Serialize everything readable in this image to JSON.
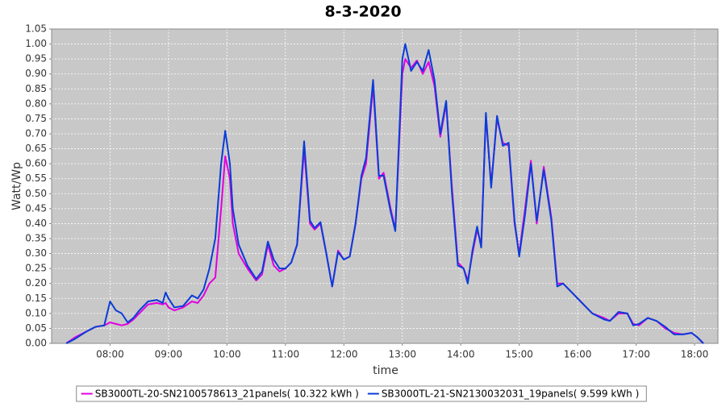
{
  "chart_data": {
    "type": "line",
    "title": "8-3-2020",
    "x_label": "time",
    "y_label": "Watt/Wp",
    "x": [
      7.25,
      7.4,
      7.6,
      7.75,
      7.9,
      8.0,
      8.1,
      8.2,
      8.3,
      8.4,
      8.5,
      8.65,
      8.8,
      8.9,
      8.95,
      9.0,
      9.1,
      9.25,
      9.4,
      9.5,
      9.6,
      9.7,
      9.8,
      9.9,
      9.97,
      10.05,
      10.1,
      10.2,
      10.35,
      10.5,
      10.6,
      10.7,
      10.8,
      10.9,
      11.0,
      11.1,
      11.2,
      11.32,
      11.42,
      11.5,
      11.6,
      11.7,
      11.8,
      11.9,
      12.0,
      12.1,
      12.2,
      12.3,
      12.38,
      12.5,
      12.6,
      12.68,
      12.8,
      12.88,
      13.0,
      13.05,
      13.15,
      13.25,
      13.35,
      13.45,
      13.55,
      13.65,
      13.75,
      13.85,
      13.95,
      14.05,
      14.12,
      14.2,
      14.28,
      14.35,
      14.43,
      14.52,
      14.62,
      14.72,
      14.82,
      14.92,
      15.0,
      15.1,
      15.2,
      15.3,
      15.42,
      15.55,
      15.65,
      15.75,
      15.9,
      16.05,
      16.25,
      16.45,
      16.55,
      16.7,
      16.85,
      16.95,
      17.05,
      17.2,
      17.35,
      17.5,
      17.65,
      17.8,
      17.95,
      18.05,
      18.15
    ],
    "series": [
      {
        "name": "SB3000TL-20-SN2100578613_21panels( 10.322 kWh )",
        "color": "#e000e0",
        "values": [
          0,
          0.02,
          0.04,
          0.055,
          0.06,
          0.07,
          0.065,
          0.06,
          0.065,
          0.08,
          0.1,
          0.13,
          0.135,
          0.13,
          0.135,
          0.12,
          0.11,
          0.12,
          0.14,
          0.135,
          0.16,
          0.2,
          0.22,
          0.45,
          0.625,
          0.55,
          0.4,
          0.3,
          0.25,
          0.21,
          0.23,
          0.33,
          0.26,
          0.24,
          0.25,
          0.27,
          0.33,
          0.65,
          0.4,
          0.38,
          0.4,
          0.3,
          0.19,
          0.31,
          0.28,
          0.29,
          0.4,
          0.55,
          0.6,
          0.86,
          0.55,
          0.57,
          0.45,
          0.38,
          0.9,
          0.95,
          0.92,
          0.945,
          0.9,
          0.94,
          0.86,
          0.69,
          0.8,
          0.52,
          0.27,
          0.25,
          0.21,
          0.3,
          0.38,
          0.33,
          0.76,
          0.53,
          0.75,
          0.67,
          0.66,
          0.4,
          0.3,
          0.45,
          0.61,
          0.4,
          0.59,
          0.42,
          0.2,
          0.2,
          0.17,
          0.14,
          0.1,
          0.085,
          0.075,
          0.1,
          0.1,
          0.065,
          0.06,
          0.085,
          0.075,
          0.05,
          0.035,
          0.03,
          0.035,
          0.02,
          0
        ]
      },
      {
        "name": "SB3000TL-21-SN2130032031_19panels( 9.599 kWh )",
        "color": "#0a3cd8",
        "values": [
          0,
          0.015,
          0.04,
          0.055,
          0.06,
          0.14,
          0.11,
          0.1,
          0.07,
          0.085,
          0.11,
          0.14,
          0.145,
          0.135,
          0.17,
          0.15,
          0.12,
          0.125,
          0.16,
          0.15,
          0.18,
          0.25,
          0.35,
          0.6,
          0.71,
          0.6,
          0.45,
          0.33,
          0.26,
          0.215,
          0.24,
          0.34,
          0.28,
          0.25,
          0.25,
          0.27,
          0.33,
          0.675,
          0.41,
          0.385,
          0.405,
          0.3,
          0.19,
          0.305,
          0.28,
          0.29,
          0.4,
          0.56,
          0.62,
          0.88,
          0.56,
          0.56,
          0.44,
          0.375,
          0.95,
          1.0,
          0.91,
          0.94,
          0.91,
          0.98,
          0.88,
          0.7,
          0.81,
          0.5,
          0.26,
          0.25,
          0.2,
          0.31,
          0.39,
          0.32,
          0.77,
          0.52,
          0.76,
          0.66,
          0.67,
          0.41,
          0.29,
          0.43,
          0.6,
          0.41,
          0.58,
          0.41,
          0.19,
          0.2,
          0.17,
          0.14,
          0.1,
          0.08,
          0.075,
          0.105,
          0.1,
          0.06,
          0.065,
          0.085,
          0.075,
          0.055,
          0.03,
          0.03,
          0.035,
          0.02,
          0
        ]
      }
    ],
    "xlim": [
      7.0,
      18.4
    ],
    "xticks": [
      {
        "value": 8,
        "label": "08:00"
      },
      {
        "value": 9,
        "label": "09:00"
      },
      {
        "value": 10,
        "label": "10:00"
      },
      {
        "value": 11,
        "label": "11:00"
      },
      {
        "value": 12,
        "label": "12:00"
      },
      {
        "value": 13,
        "label": "13:00"
      },
      {
        "value": 14,
        "label": "14:00"
      },
      {
        "value": 15,
        "label": "15:00"
      },
      {
        "value": 16,
        "label": "16:00"
      },
      {
        "value": 17,
        "label": "17:00"
      },
      {
        "value": 18,
        "label": "18:00"
      }
    ],
    "ylim": [
      0,
      1.05
    ],
    "yticks": [
      {
        "value": 0,
        "label": "0.00"
      },
      0.05,
      {
        "value": 0.1,
        "label": "0.10"
      },
      0.15,
      {
        "value": 0.2,
        "label": "0.20"
      },
      0.25,
      {
        "value": 0.3,
        "label": "0.30"
      },
      0.35,
      {
        "value": 0.4,
        "label": "0.40"
      },
      0.45,
      {
        "value": 0.5,
        "label": "0.50"
      },
      0.55,
      {
        "value": 0.6,
        "label": "0.60"
      },
      0.65,
      {
        "value": 0.7,
        "label": "0.70"
      },
      0.75,
      {
        "value": 0.8,
        "label": "0.80"
      },
      0.85,
      {
        "value": 0.9,
        "label": "0.90"
      },
      0.95,
      {
        "value": 1,
        "label": "1.00"
      },
      1.05
    ],
    "grid": true,
    "legend": "bottom"
  }
}
